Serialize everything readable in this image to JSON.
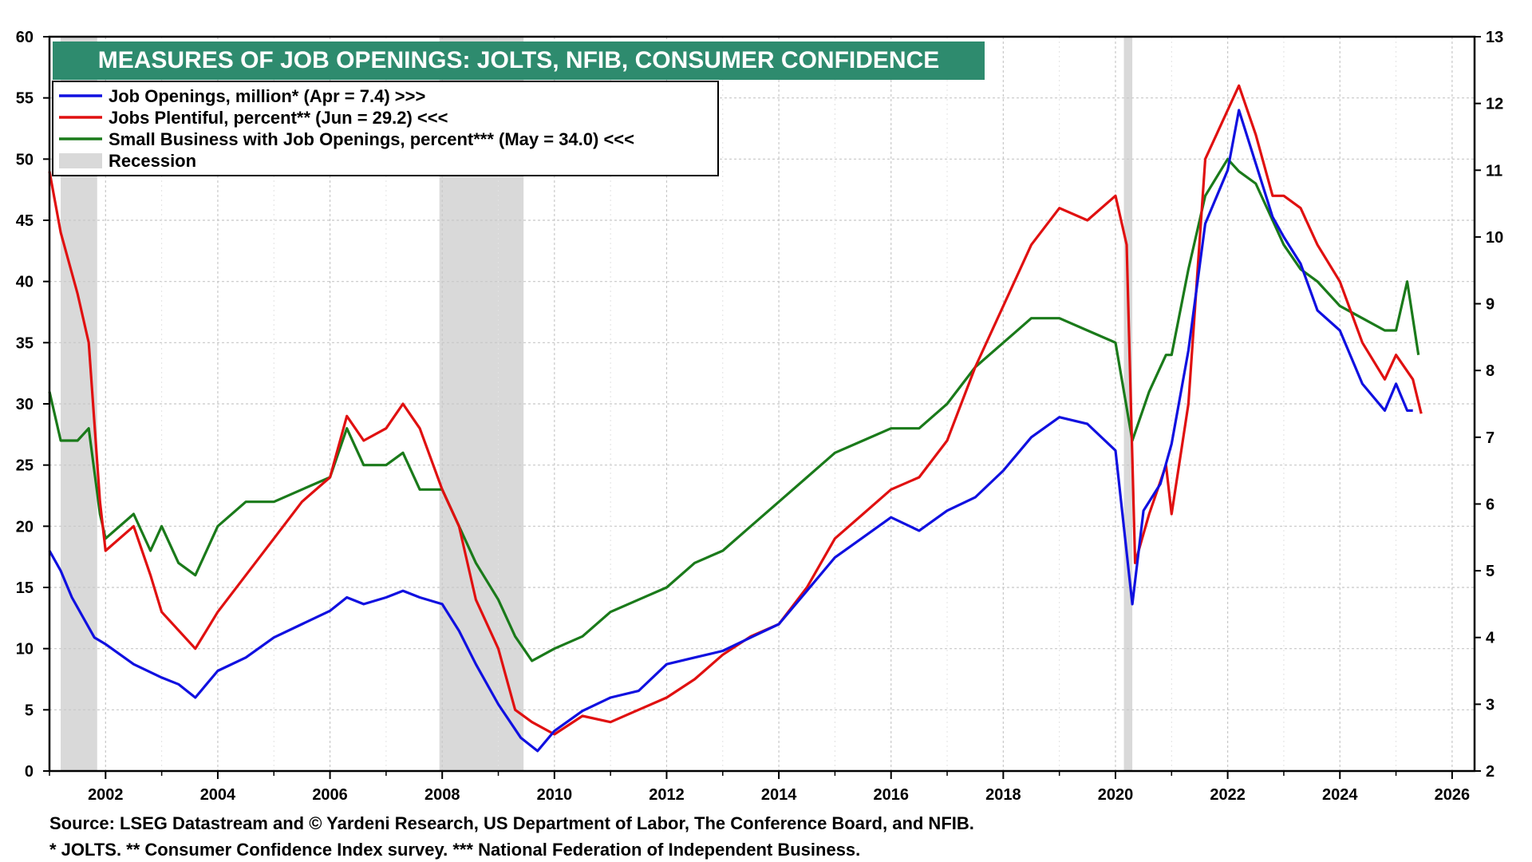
{
  "chart_data": {
    "type": "line",
    "title": "MEASURES OF JOB OPENINGS: JOLTS, NFIB, CONSUMER CONFIDENCE",
    "x_ticks": [
      "2002",
      "2004",
      "2006",
      "2008",
      "2010",
      "2012",
      "2014",
      "2016",
      "2018",
      "2020",
      "2022",
      "2024",
      "2026"
    ],
    "xlim": [
      2001.0,
      2026.4
    ],
    "left_axis": {
      "ylim": [
        0,
        60
      ],
      "ticks": [
        "0",
        "5",
        "10",
        "15",
        "20",
        "25",
        "30",
        "35",
        "40",
        "45",
        "50",
        "55",
        "60"
      ]
    },
    "right_axis": {
      "ylim": [
        2,
        13
      ],
      "ticks": [
        "2",
        "3",
        "4",
        "5",
        "6",
        "7",
        "8",
        "9",
        "10",
        "11",
        "12",
        "13"
      ]
    },
    "recessions": [
      [
        2001.2,
        2001.85
      ],
      [
        2007.95,
        2009.45
      ],
      [
        2020.15,
        2020.3
      ]
    ],
    "series": [
      {
        "name": "Job Openings, million* (Apr = 7.4) >>>",
        "axis": "right",
        "color": "#1010e0",
        "points": [
          [
            2001.0,
            5.3
          ],
          [
            2001.2,
            5.0
          ],
          [
            2001.4,
            4.6
          ],
          [
            2001.6,
            4.3
          ],
          [
            2001.8,
            4.0
          ],
          [
            2002.0,
            3.9
          ],
          [
            2002.5,
            3.6
          ],
          [
            2003.0,
            3.4
          ],
          [
            2003.3,
            3.3
          ],
          [
            2003.6,
            3.1
          ],
          [
            2004.0,
            3.5
          ],
          [
            2004.5,
            3.7
          ],
          [
            2005.0,
            4.0
          ],
          [
            2005.5,
            4.2
          ],
          [
            2006.0,
            4.4
          ],
          [
            2006.3,
            4.6
          ],
          [
            2006.6,
            4.5
          ],
          [
            2007.0,
            4.6
          ],
          [
            2007.3,
            4.7
          ],
          [
            2007.6,
            4.6
          ],
          [
            2008.0,
            4.5
          ],
          [
            2008.3,
            4.1
          ],
          [
            2008.6,
            3.6
          ],
          [
            2009.0,
            3.0
          ],
          [
            2009.4,
            2.5
          ],
          [
            2009.7,
            2.3
          ],
          [
            2010.0,
            2.6
          ],
          [
            2010.5,
            2.9
          ],
          [
            2011.0,
            3.1
          ],
          [
            2011.5,
            3.2
          ],
          [
            2012.0,
            3.6
          ],
          [
            2012.5,
            3.7
          ],
          [
            2013.0,
            3.8
          ],
          [
            2013.5,
            4.0
          ],
          [
            2014.0,
            4.2
          ],
          [
            2014.5,
            4.7
          ],
          [
            2015.0,
            5.2
          ],
          [
            2015.5,
            5.5
          ],
          [
            2016.0,
            5.8
          ],
          [
            2016.5,
            5.6
          ],
          [
            2017.0,
            5.9
          ],
          [
            2017.5,
            6.1
          ],
          [
            2018.0,
            6.5
          ],
          [
            2018.5,
            7.0
          ],
          [
            2019.0,
            7.3
          ],
          [
            2019.5,
            7.2
          ],
          [
            2020.0,
            6.8
          ],
          [
            2020.3,
            4.5
          ],
          [
            2020.5,
            5.9
          ],
          [
            2020.8,
            6.3
          ],
          [
            2021.0,
            6.9
          ],
          [
            2021.3,
            8.3
          ],
          [
            2021.6,
            10.2
          ],
          [
            2022.0,
            11.0
          ],
          [
            2022.2,
            11.9
          ],
          [
            2022.5,
            11.1
          ],
          [
            2022.8,
            10.3
          ],
          [
            2023.0,
            10.0
          ],
          [
            2023.3,
            9.6
          ],
          [
            2023.6,
            8.9
          ],
          [
            2024.0,
            8.6
          ],
          [
            2024.4,
            7.8
          ],
          [
            2024.8,
            7.4
          ],
          [
            2025.0,
            7.8
          ],
          [
            2025.2,
            7.4
          ],
          [
            2025.3,
            7.4
          ]
        ]
      },
      {
        "name": "Jobs Plentiful, percent** (Jun = 29.2) <<<",
        "axis": "left",
        "color": "#e01010",
        "points": [
          [
            2001.0,
            49.0
          ],
          [
            2001.2,
            44.0
          ],
          [
            2001.5,
            39.0
          ],
          [
            2001.7,
            35.0
          ],
          [
            2001.9,
            22.0
          ],
          [
            2002.0,
            18.0
          ],
          [
            2002.5,
            20.0
          ],
          [
            2002.8,
            16.0
          ],
          [
            2003.0,
            13.0
          ],
          [
            2003.3,
            11.5
          ],
          [
            2003.6,
            10.0
          ],
          [
            2004.0,
            13.0
          ],
          [
            2004.5,
            16.0
          ],
          [
            2005.0,
            19.0
          ],
          [
            2005.5,
            22.0
          ],
          [
            2006.0,
            24.0
          ],
          [
            2006.3,
            29.0
          ],
          [
            2006.6,
            27.0
          ],
          [
            2007.0,
            28.0
          ],
          [
            2007.3,
            30.0
          ],
          [
            2007.6,
            28.0
          ],
          [
            2008.0,
            23.0
          ],
          [
            2008.3,
            20.0
          ],
          [
            2008.6,
            14.0
          ],
          [
            2009.0,
            10.0
          ],
          [
            2009.3,
            5.0
          ],
          [
            2009.6,
            4.0
          ],
          [
            2010.0,
            3.0
          ],
          [
            2010.5,
            4.5
          ],
          [
            2011.0,
            4.0
          ],
          [
            2011.5,
            5.0
          ],
          [
            2012.0,
            6.0
          ],
          [
            2012.5,
            7.5
          ],
          [
            2013.0,
            9.5
          ],
          [
            2013.5,
            11.0
          ],
          [
            2014.0,
            12.0
          ],
          [
            2014.5,
            15.0
          ],
          [
            2015.0,
            19.0
          ],
          [
            2015.5,
            21.0
          ],
          [
            2016.0,
            23.0
          ],
          [
            2016.5,
            24.0
          ],
          [
            2017.0,
            27.0
          ],
          [
            2017.5,
            33.0
          ],
          [
            2018.0,
            38.0
          ],
          [
            2018.5,
            43.0
          ],
          [
            2019.0,
            46.0
          ],
          [
            2019.5,
            45.0
          ],
          [
            2020.0,
            47.0
          ],
          [
            2020.2,
            43.0
          ],
          [
            2020.35,
            17.0
          ],
          [
            2020.6,
            21.0
          ],
          [
            2020.9,
            25.0
          ],
          [
            2021.0,
            21.0
          ],
          [
            2021.3,
            30.0
          ],
          [
            2021.6,
            50.0
          ],
          [
            2022.0,
            54.0
          ],
          [
            2022.2,
            56.0
          ],
          [
            2022.5,
            52.0
          ],
          [
            2022.8,
            47.0
          ],
          [
            2023.0,
            47.0
          ],
          [
            2023.3,
            46.0
          ],
          [
            2023.6,
            43.0
          ],
          [
            2024.0,
            40.0
          ],
          [
            2024.4,
            35.0
          ],
          [
            2024.8,
            32.0
          ],
          [
            2025.0,
            34.0
          ],
          [
            2025.3,
            32.0
          ],
          [
            2025.45,
            29.2
          ]
        ]
      },
      {
        "name": "Small Business with Job Openings, percent*** (May = 34.0) <<<",
        "axis": "left",
        "color": "#1a7a1a",
        "points": [
          [
            2001.0,
            31.0
          ],
          [
            2001.2,
            27.0
          ],
          [
            2001.5,
            27.0
          ],
          [
            2001.7,
            28.0
          ],
          [
            2001.9,
            21.0
          ],
          [
            2002.0,
            19.0
          ],
          [
            2002.5,
            21.0
          ],
          [
            2002.8,
            18.0
          ],
          [
            2003.0,
            20.0
          ],
          [
            2003.3,
            17.0
          ],
          [
            2003.6,
            16.0
          ],
          [
            2004.0,
            20.0
          ],
          [
            2004.5,
            22.0
          ],
          [
            2005.0,
            22.0
          ],
          [
            2005.5,
            23.0
          ],
          [
            2006.0,
            24.0
          ],
          [
            2006.3,
            28.0
          ],
          [
            2006.6,
            25.0
          ],
          [
            2007.0,
            25.0
          ],
          [
            2007.3,
            26.0
          ],
          [
            2007.6,
            23.0
          ],
          [
            2008.0,
            23.0
          ],
          [
            2008.3,
            20.0
          ],
          [
            2008.6,
            17.0
          ],
          [
            2009.0,
            14.0
          ],
          [
            2009.3,
            11.0
          ],
          [
            2009.6,
            9.0
          ],
          [
            2010.0,
            10.0
          ],
          [
            2010.5,
            11.0
          ],
          [
            2011.0,
            13.0
          ],
          [
            2011.5,
            14.0
          ],
          [
            2012.0,
            15.0
          ],
          [
            2012.5,
            17.0
          ],
          [
            2013.0,
            18.0
          ],
          [
            2013.5,
            20.0
          ],
          [
            2014.0,
            22.0
          ],
          [
            2014.5,
            24.0
          ],
          [
            2015.0,
            26.0
          ],
          [
            2015.5,
            27.0
          ],
          [
            2016.0,
            28.0
          ],
          [
            2016.5,
            28.0
          ],
          [
            2017.0,
            30.0
          ],
          [
            2017.5,
            33.0
          ],
          [
            2018.0,
            35.0
          ],
          [
            2018.5,
            37.0
          ],
          [
            2019.0,
            37.0
          ],
          [
            2019.5,
            36.0
          ],
          [
            2020.0,
            35.0
          ],
          [
            2020.3,
            27.0
          ],
          [
            2020.6,
            31.0
          ],
          [
            2020.9,
            34.0
          ],
          [
            2021.0,
            34.0
          ],
          [
            2021.3,
            41.0
          ],
          [
            2021.6,
            47.0
          ],
          [
            2022.0,
            50.0
          ],
          [
            2022.2,
            49.0
          ],
          [
            2022.5,
            48.0
          ],
          [
            2022.8,
            45.0
          ],
          [
            2023.0,
            43.0
          ],
          [
            2023.3,
            41.0
          ],
          [
            2023.6,
            40.0
          ],
          [
            2024.0,
            38.0
          ],
          [
            2024.4,
            37.0
          ],
          [
            2024.8,
            36.0
          ],
          [
            2025.0,
            36.0
          ],
          [
            2025.2,
            40.0
          ],
          [
            2025.4,
            34.0
          ]
        ]
      }
    ],
    "legend": [
      {
        "label": "Job Openings, million* (Apr = 7.4) >>>",
        "color": "#1010e0",
        "kind": "line"
      },
      {
        "label": "Jobs Plentiful, percent** (Jun = 29.2) <<<",
        "color": "#e01010",
        "kind": "line"
      },
      {
        "label": "Small Business with Job Openings, percent*** (May = 34.0) <<<",
        "color": "#1a7a1a",
        "kind": "line"
      },
      {
        "label": "Recession",
        "color": "#d9d9d9",
        "kind": "box"
      }
    ],
    "title_bg_color": "#2e8b6e",
    "recession_color": "#d9d9d9"
  },
  "footer": {
    "source": "Source: LSEG Datastream and © Yardeni Research, US Department of Labor, The Conference Board, and NFIB.",
    "notes": "* JOLTS.    ** Consumer Confidence Index survey.    *** National Federation of Independent Business."
  }
}
